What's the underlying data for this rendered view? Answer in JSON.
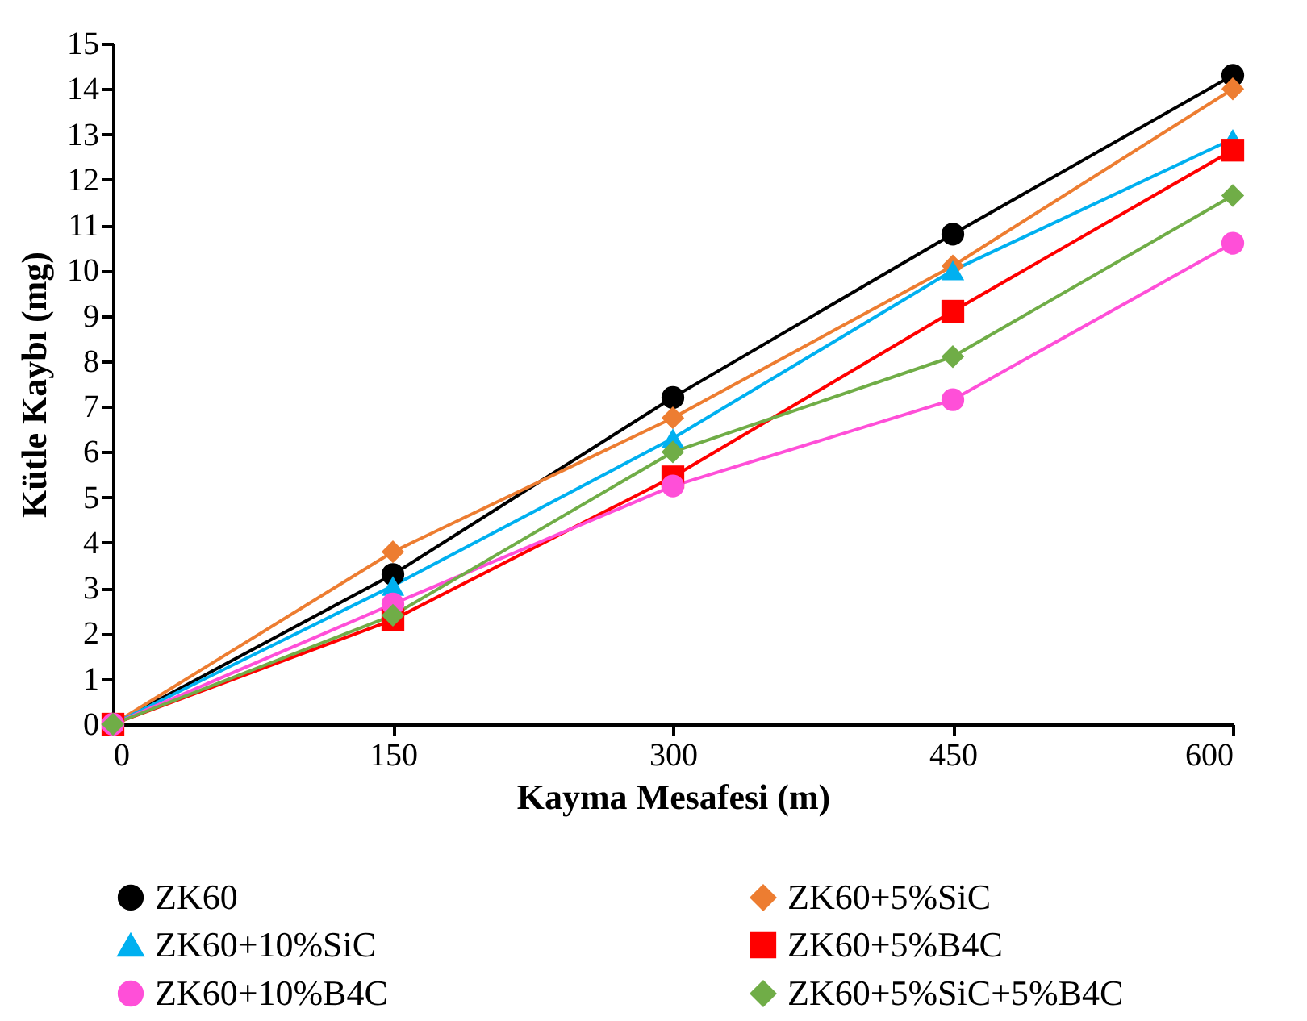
{
  "chart_data": {
    "type": "line",
    "xlabel": "Kayma Mesafesi (m)",
    "ylabel": "Kütle Kaybı (mg)",
    "x": [
      0,
      150,
      300,
      450,
      600
    ],
    "xlim": [
      0,
      600
    ],
    "xticks": [
      0,
      150,
      300,
      450,
      600
    ],
    "ylim": [
      0,
      15
    ],
    "yticks": [
      0,
      1,
      2,
      3,
      4,
      5,
      6,
      7,
      8,
      9,
      10,
      11,
      12,
      13,
      14,
      15
    ],
    "grid": false,
    "legend": "bottom",
    "line_style": "solid",
    "series": [
      {
        "name": "ZK60",
        "color": "#000000",
        "marker": "circle",
        "values": [
          0,
          3.3,
          7.2,
          10.8,
          14.3
        ]
      },
      {
        "name": "ZK60+5%SiC",
        "color": "#ed7d31",
        "marker": "diamond",
        "values": [
          0,
          3.8,
          6.75,
          10.1,
          14.0
        ]
      },
      {
        "name": "ZK60+10%SiC",
        "color": "#00b0f0",
        "marker": "triangle",
        "values": [
          0,
          3.05,
          6.3,
          10.0,
          12.9
        ]
      },
      {
        "name": "ZK60+5%B4C",
        "color": "#ff0000",
        "marker": "square",
        "values": [
          0,
          2.3,
          5.45,
          9.1,
          12.65
        ]
      },
      {
        "name": "ZK60+10%B4C",
        "color": "#ff4fd8",
        "marker": "circle",
        "values": [
          0,
          2.65,
          5.25,
          7.15,
          10.6
        ]
      },
      {
        "name": "ZK60+5%SiC+5%B4C",
        "color": "#70ad47",
        "marker": "diamond",
        "values": [
          0,
          2.4,
          6.0,
          8.1,
          11.65
        ]
      }
    ]
  }
}
